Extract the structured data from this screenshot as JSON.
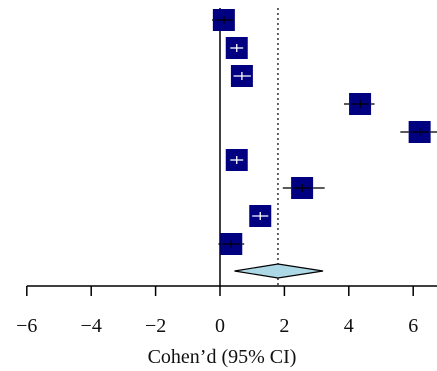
{
  "chart_data": {
    "type": "forest",
    "title": "",
    "xlabel": "Cohen’d (95% CI)",
    "ylabel": "",
    "xlim": [
      -6,
      6.5
    ],
    "xticks": [
      -6,
      -4,
      -2,
      0,
      2,
      4,
      6
    ],
    "xtick_labels": [
      "−6",
      "−4",
      "−2",
      "0",
      "2",
      "4",
      "6"
    ],
    "reference_line": {
      "x": 0,
      "style": "solid"
    },
    "summary_line": {
      "x": 1.8,
      "style": "dotted"
    },
    "studies": [
      {
        "estimate": 0.12,
        "ci_low": -0.25,
        "ci_high": 0.45
      },
      {
        "estimate": 0.52,
        "ci_low": 0.32,
        "ci_high": 0.72
      },
      {
        "estimate": 0.68,
        "ci_low": 0.42,
        "ci_high": 0.98
      },
      {
        "estimate": 4.35,
        "ci_low": 3.85,
        "ci_high": 4.8
      },
      {
        "estimate": 6.2,
        "ci_low": 5.6,
        "ci_high": 6.85
      },
      {
        "estimate": 0.52,
        "ci_low": 0.32,
        "ci_high": 0.72
      },
      {
        "estimate": 2.55,
        "ci_low": 1.95,
        "ci_high": 3.25
      },
      {
        "estimate": 1.25,
        "ci_low": 1.0,
        "ci_high": 1.5
      },
      {
        "estimate": 0.35,
        "ci_low": -0.05,
        "ci_high": 0.75
      }
    ],
    "summary": {
      "estimate": 1.8,
      "ci_low": 0.45,
      "ci_high": 3.2
    },
    "colors": {
      "box": "#000080",
      "ci_line": "#000000",
      "ci_inside": "#ffffff",
      "diamond_fill": "#add8e6",
      "diamond_stroke": "#000000"
    }
  }
}
